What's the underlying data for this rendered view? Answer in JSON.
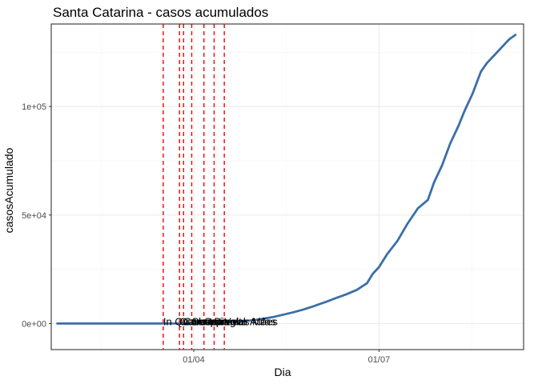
{
  "chart_data": {
    "type": "line",
    "title": "Santa Catarina - casos acumulados",
    "xlabel": "Dia",
    "ylabel": "casosAcumulado",
    "x_axis": {
      "type": "date",
      "range": [
        "2020-01-22",
        "2020-09-10"
      ],
      "ticks": [
        {
          "value": "2020-04-01",
          "label": "01/04"
        },
        {
          "value": "2020-07-01",
          "label": "01/07"
        }
      ]
    },
    "y_axis": {
      "range": [
        -12000,
        138000
      ],
      "ticks": [
        {
          "value": 0,
          "label": "0e+00"
        },
        {
          "value": 50000,
          "label": "5e+04"
        },
        {
          "value": 100000,
          "label": "1e+05"
        }
      ]
    },
    "grid": true,
    "legend": "none",
    "colors": {
      "series": "#3b6fa7",
      "event_lines": "#ff0000",
      "panel_border": "#333333",
      "grid_major": "#ebebeb",
      "grid_minor": "#f5f5f5"
    },
    "series": [
      {
        "x": [
          "2020-01-25",
          "2020-02-15",
          "2020-03-01",
          "2020-03-10",
          "2020-03-20",
          "2020-03-31",
          "2020-04-10",
          "2020-04-20",
          "2020-04-30",
          "2020-05-05",
          "2020-05-10",
          "2020-05-15",
          "2020-05-20",
          "2020-05-25",
          "2020-05-30",
          "2020-06-01",
          "2020-06-05",
          "2020-06-10",
          "2020-06-15",
          "2020-06-20",
          "2020-06-25",
          "2020-06-28",
          "2020-07-01",
          "2020-07-05",
          "2020-07-10",
          "2020-07-15",
          "2020-07-20",
          "2020-07-25",
          "2020-07-28",
          "2020-08-01",
          "2020-08-05",
          "2020-08-09",
          "2020-08-12",
          "2020-08-16",
          "2020-08-20",
          "2020-08-23",
          "2020-08-27",
          "2020-08-31",
          "2020-09-03",
          "2020-09-06"
        ],
        "y": [
          0,
          0,
          0,
          0,
          0,
          0,
          300,
          800,
          1500,
          2200,
          3000,
          4100,
          5200,
          6500,
          8000,
          8700,
          10000,
          11800,
          13500,
          15500,
          18500,
          23000,
          26000,
          32000,
          38000,
          46000,
          53000,
          57000,
          65000,
          73000,
          83000,
          91000,
          98000,
          106000,
          116000,
          120000,
          124000,
          128000,
          131000,
          133000
        ]
      }
    ],
    "events": [
      {
        "date": "2020-03-17",
        "label": "In Quarentena"
      },
      {
        "date": "2020-03-25",
        "label": "Outros"
      },
      {
        "date": "2020-03-27",
        "label": "Comercio"
      },
      {
        "date": "2020-03-31",
        "label": "Shopping"
      },
      {
        "date": "2020-04-06",
        "label": "Carnaval"
      },
      {
        "date": "2020-04-11",
        "label": "Dia das Mães"
      },
      {
        "date": "2020-04-16",
        "label": "Volta Aulas"
      }
    ]
  }
}
